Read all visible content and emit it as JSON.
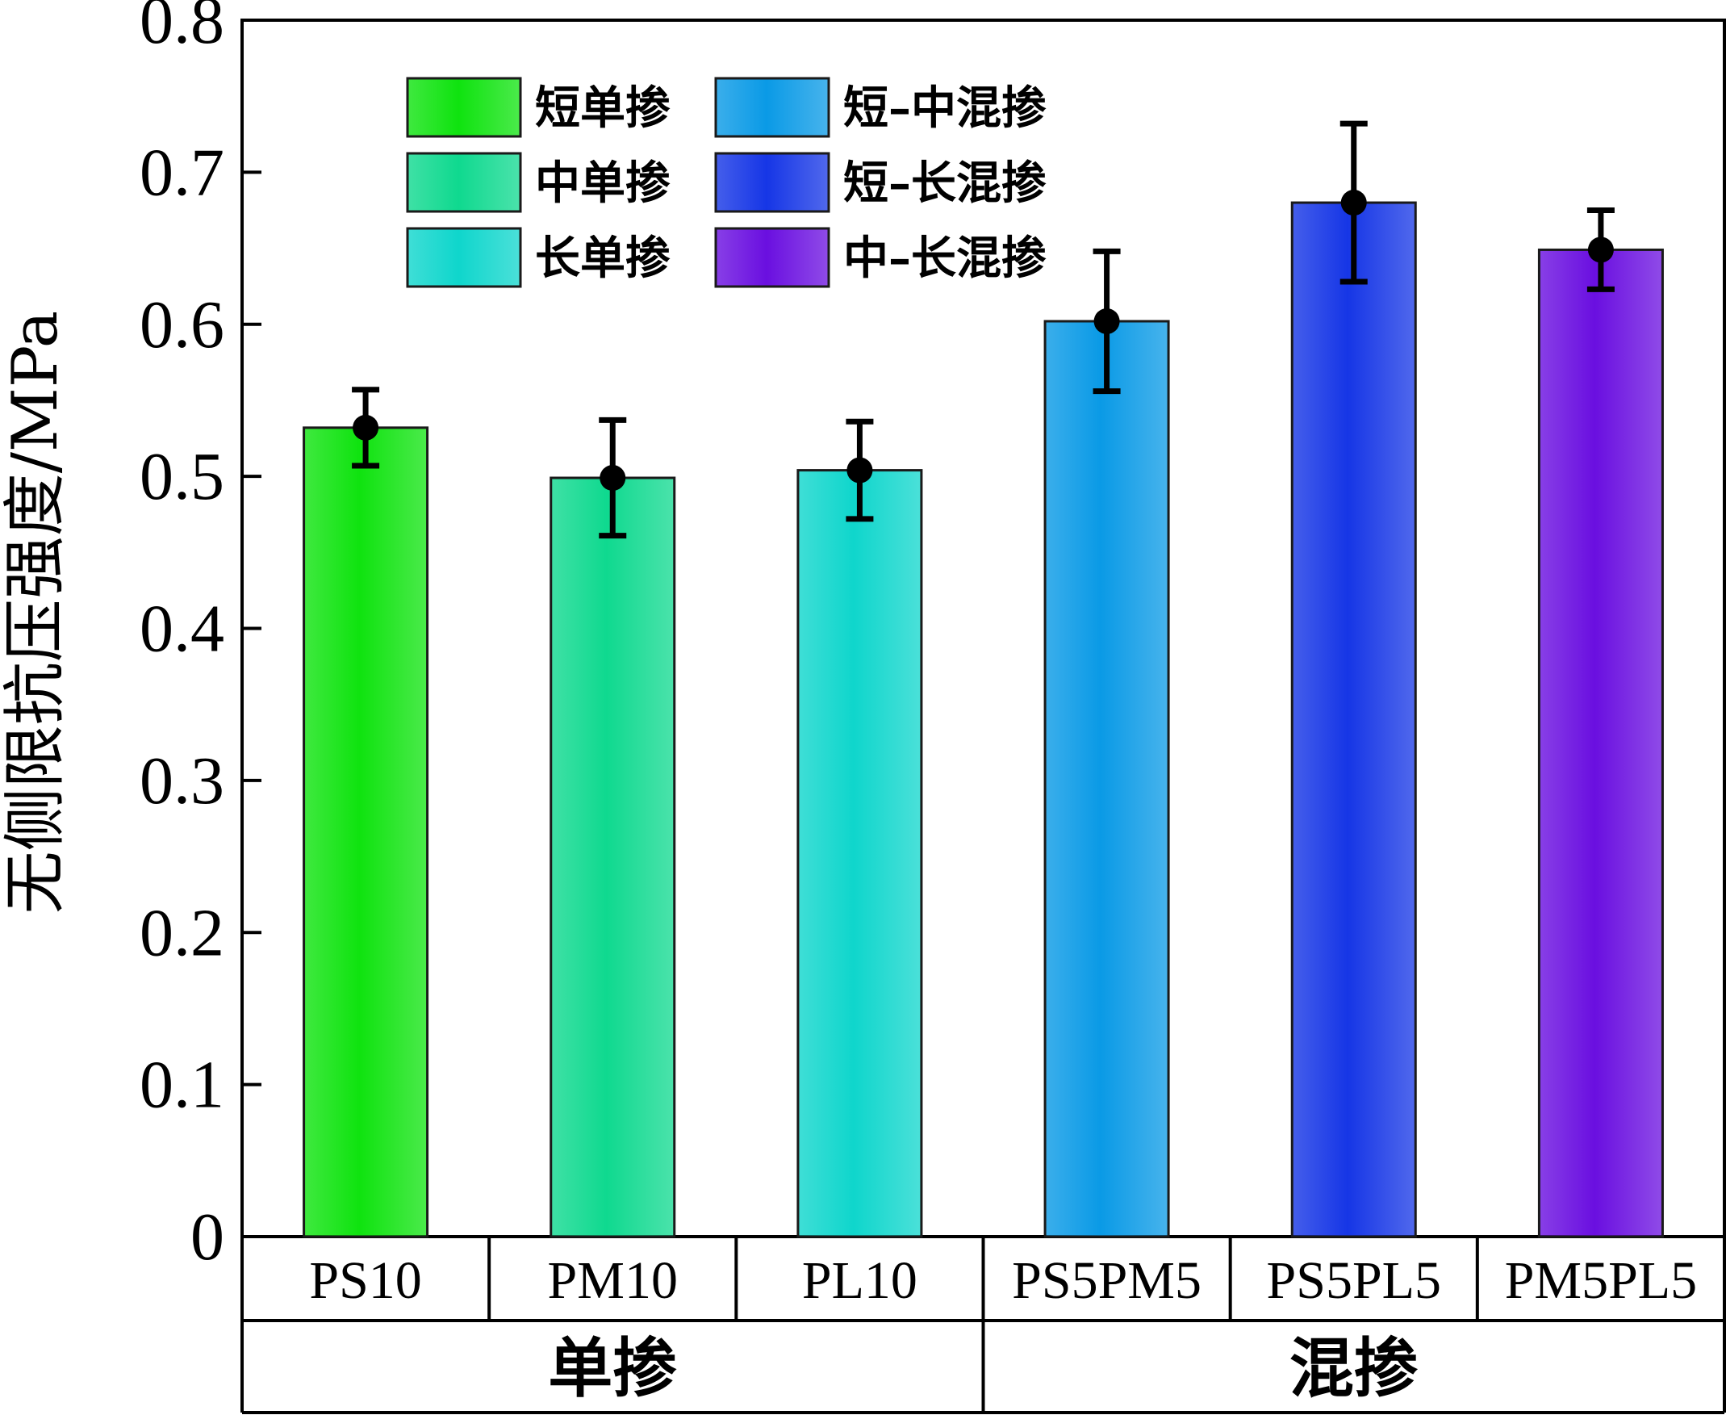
{
  "chart_data": {
    "type": "bar",
    "ylabel": "无侧限抗压强度/MPa",
    "xlabel": "",
    "ylim": [
      0,
      0.8
    ],
    "yticks": [
      "0",
      "0.1",
      "0.2",
      "0.3",
      "0.4",
      "0.5",
      "0.6",
      "0.7",
      "0.8"
    ],
    "categories": [
      "PS10",
      "PM10",
      "PL10",
      "PS5PM5",
      "PS5PL5",
      "PM5PL5"
    ],
    "values": [
      0.532,
      0.499,
      0.504,
      0.602,
      0.68,
      0.649
    ],
    "error_bars": [
      0.025,
      0.038,
      0.032,
      0.046,
      0.052,
      0.026
    ],
    "groups": [
      {
        "label": "单掺",
        "categories": [
          "PS10",
          "PM10",
          "PL10"
        ]
      },
      {
        "label": "混掺",
        "categories": [
          "PS5PM5",
          "PS5PL5",
          "PM5PL5"
        ]
      }
    ],
    "legend": {
      "placement": "top",
      "entries": [
        "短单掺",
        "中单掺",
        "长单掺",
        "短–中混掺",
        "短–长混掺",
        "中–长混掺"
      ]
    },
    "colors": [
      "#0fe30f",
      "#0fd98f",
      "#0fd6cc",
      "#0a9ae6",
      "#1636e6",
      "#6a0fe0"
    ],
    "grid": false
  }
}
